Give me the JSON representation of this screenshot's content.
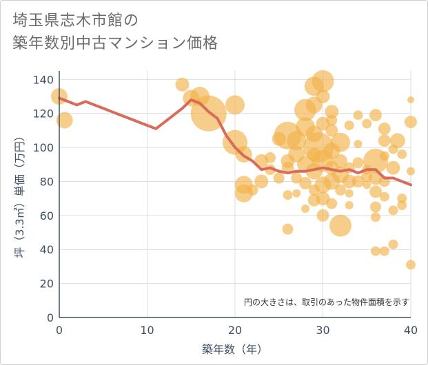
{
  "title_line1": "埼玉県志木市館の",
  "title_line2": "築年数別中古マンション価格",
  "chart_data": {
    "type": "scatter",
    "title": "埼玉県志木市館の 築年数別中古マンション価格",
    "xlabel": "築年数（年）",
    "ylabel": "坪（3.3㎡）単価（万円）",
    "xlim": [
      0,
      40
    ],
    "ylim": [
      0,
      145
    ],
    "xticks": [
      0,
      10,
      20,
      30,
      40
    ],
    "yticks": [
      0,
      20,
      40,
      60,
      80,
      100,
      120,
      140
    ],
    "grid": true,
    "annotation": "円の大きさは、取引のあった物件面積を示す",
    "colors": {
      "bubble": "#f2b24c",
      "line": "#d96b5a"
    },
    "trend_line": {
      "x": [
        0,
        1,
        2,
        3,
        4,
        5,
        6,
        7,
        8,
        9,
        10,
        11,
        12,
        13,
        14,
        15,
        16,
        17,
        18,
        19,
        20,
        21,
        22,
        23,
        24,
        25,
        26,
        27,
        28,
        29,
        30,
        31,
        32,
        33,
        34,
        35,
        36,
        37,
        38,
        39,
        40
      ],
      "y": [
        129,
        127,
        125,
        127,
        125,
        123,
        121,
        119,
        117,
        115,
        113,
        111,
        115,
        119,
        123,
        128,
        126,
        121,
        117,
        107,
        100,
        95,
        92,
        87,
        88,
        86,
        85,
        86,
        86,
        87,
        88,
        87,
        86,
        87,
        85,
        87,
        87,
        82,
        82,
        80,
        78
      ]
    },
    "bubbles": [
      {
        "x": 0,
        "y": 130,
        "s": 12
      },
      {
        "x": 0.6,
        "y": 116,
        "s": 12
      },
      {
        "x": 14,
        "y": 137,
        "s": 10
      },
      {
        "x": 15,
        "y": 129,
        "s": 12
      },
      {
        "x": 16,
        "y": 130,
        "s": 14
      },
      {
        "x": 17,
        "y": 120,
        "s": 26
      },
      {
        "x": 20,
        "y": 125,
        "s": 14
      },
      {
        "x": 20,
        "y": 103,
        "s": 18
      },
      {
        "x": 21,
        "y": 96,
        "s": 12
      },
      {
        "x": 21,
        "y": 78,
        "s": 13
      },
      {
        "x": 21,
        "y": 73,
        "s": 13
      },
      {
        "x": 22,
        "y": 75,
        "s": 8
      },
      {
        "x": 23,
        "y": 92,
        "s": 10
      },
      {
        "x": 23,
        "y": 80,
        "s": 10
      },
      {
        "x": 24,
        "y": 94,
        "s": 8
      },
      {
        "x": 24,
        "y": 87,
        "s": 8
      },
      {
        "x": 25,
        "y": 105,
        "s": 10
      },
      {
        "x": 25,
        "y": 82,
        "s": 8
      },
      {
        "x": 26,
        "y": 107,
        "s": 20
      },
      {
        "x": 26,
        "y": 92,
        "s": 10
      },
      {
        "x": 26,
        "y": 88,
        "s": 9
      },
      {
        "x": 26,
        "y": 72,
        "s": 7
      },
      {
        "x": 26,
        "y": 52,
        "s": 8
      },
      {
        "x": 27,
        "y": 104,
        "s": 14
      },
      {
        "x": 27,
        "y": 96,
        "s": 12
      },
      {
        "x": 27,
        "y": 82,
        "s": 8
      },
      {
        "x": 27,
        "y": 73,
        "s": 6
      },
      {
        "x": 28,
        "y": 122,
        "s": 16
      },
      {
        "x": 28,
        "y": 112,
        "s": 14
      },
      {
        "x": 28,
        "y": 90,
        "s": 12
      },
      {
        "x": 28,
        "y": 79,
        "s": 9
      },
      {
        "x": 28,
        "y": 64,
        "s": 6
      },
      {
        "x": 29,
        "y": 136,
        "s": 14
      },
      {
        "x": 29,
        "y": 125,
        "s": 12
      },
      {
        "x": 29,
        "y": 108,
        "s": 12
      },
      {
        "x": 29,
        "y": 96,
        "s": 10
      },
      {
        "x": 29,
        "y": 86,
        "s": 12
      },
      {
        "x": 29,
        "y": 75,
        "s": 8
      },
      {
        "x": 29,
        "y": 69,
        "s": 9
      },
      {
        "x": 29.5,
        "y": 100,
        "s": 22
      },
      {
        "x": 30,
        "y": 139,
        "s": 16
      },
      {
        "x": 30,
        "y": 130,
        "s": 10
      },
      {
        "x": 30,
        "y": 114,
        "s": 10
      },
      {
        "x": 30,
        "y": 92,
        "s": 16
      },
      {
        "x": 30,
        "y": 78,
        "s": 12
      },
      {
        "x": 30,
        "y": 70,
        "s": 10
      },
      {
        "x": 30,
        "y": 60,
        "s": 9
      },
      {
        "x": 31,
        "y": 121,
        "s": 10
      },
      {
        "x": 31,
        "y": 116,
        "s": 8
      },
      {
        "x": 31,
        "y": 110,
        "s": 9
      },
      {
        "x": 31,
        "y": 98,
        "s": 12
      },
      {
        "x": 31,
        "y": 88,
        "s": 10
      },
      {
        "x": 31,
        "y": 80,
        "s": 12
      },
      {
        "x": 31,
        "y": 67,
        "s": 8
      },
      {
        "x": 32,
        "y": 103,
        "s": 14
      },
      {
        "x": 32,
        "y": 92,
        "s": 10
      },
      {
        "x": 32,
        "y": 84,
        "s": 12
      },
      {
        "x": 32,
        "y": 75,
        "s": 8
      },
      {
        "x": 32,
        "y": 54,
        "s": 16
      },
      {
        "x": 33,
        "y": 113,
        "s": 7
      },
      {
        "x": 33,
        "y": 88,
        "s": 8
      },
      {
        "x": 33,
        "y": 80,
        "s": 10
      },
      {
        "x": 33,
        "y": 73,
        "s": 6
      },
      {
        "x": 33,
        "y": 66,
        "s": 6
      },
      {
        "x": 34,
        "y": 119,
        "s": 7
      },
      {
        "x": 34,
        "y": 102,
        "s": 6
      },
      {
        "x": 34,
        "y": 91,
        "s": 8
      },
      {
        "x": 34,
        "y": 80,
        "s": 9
      },
      {
        "x": 35,
        "y": 114,
        "s": 7
      },
      {
        "x": 35,
        "y": 87,
        "s": 7
      },
      {
        "x": 35,
        "y": 83,
        "s": 8
      },
      {
        "x": 35,
        "y": 78,
        "s": 6
      },
      {
        "x": 36,
        "y": 119,
        "s": 9
      },
      {
        "x": 36,
        "y": 92,
        "s": 18
      },
      {
        "x": 36,
        "y": 82,
        "s": 10
      },
      {
        "x": 36,
        "y": 74,
        "s": 9
      },
      {
        "x": 36,
        "y": 65,
        "s": 8
      },
      {
        "x": 36,
        "y": 59,
        "s": 7
      },
      {
        "x": 36,
        "y": 39,
        "s": 7
      },
      {
        "x": 37,
        "y": 111,
        "s": 9
      },
      {
        "x": 37,
        "y": 104,
        "s": 9
      },
      {
        "x": 37,
        "y": 95,
        "s": 7
      },
      {
        "x": 37,
        "y": 80,
        "s": 8
      },
      {
        "x": 37,
        "y": 71,
        "s": 7
      },
      {
        "x": 37,
        "y": 39,
        "s": 7
      },
      {
        "x": 38,
        "y": 99,
        "s": 7
      },
      {
        "x": 38,
        "y": 88,
        "s": 10
      },
      {
        "x": 38,
        "y": 63,
        "s": 7
      },
      {
        "x": 38,
        "y": 43,
        "s": 7
      },
      {
        "x": 38.5,
        "y": 104,
        "s": 11
      },
      {
        "x": 39,
        "y": 96,
        "s": 7
      },
      {
        "x": 39,
        "y": 70,
        "s": 7
      },
      {
        "x": 39,
        "y": 66,
        "s": 7
      },
      {
        "x": 40,
        "y": 128,
        "s": 5
      },
      {
        "x": 40,
        "y": 115,
        "s": 9
      },
      {
        "x": 40,
        "y": 86,
        "s": 6
      },
      {
        "x": 40,
        "y": 31,
        "s": 7
      }
    ]
  }
}
